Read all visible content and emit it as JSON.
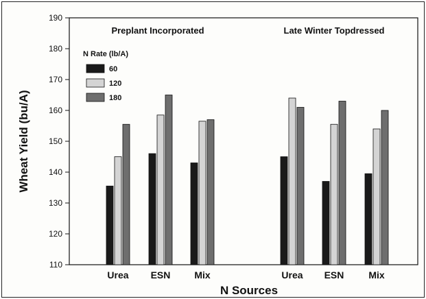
{
  "chart_data": {
    "type": "bar",
    "title": "",
    "xlabel": "N Sources",
    "ylabel": "Wheat Yield (bu/A)",
    "ylim": [
      110,
      190
    ],
    "yticks": [
      110,
      120,
      130,
      140,
      150,
      160,
      170,
      180,
      190
    ],
    "grid": false,
    "legend": {
      "title": "N Rate (lb/A)",
      "placement": "top-left",
      "entries": [
        "60",
        "120",
        "180"
      ]
    },
    "groups": [
      {
        "title": "Preplant Incorporated",
        "categories": [
          "Urea",
          "ESN",
          "Mix"
        ],
        "series": [
          {
            "name": "60",
            "values": [
              135.5,
              146,
              143
            ],
            "color": "#1a1a1a"
          },
          {
            "name": "120",
            "values": [
              145,
              158.5,
              156.5
            ],
            "color": "#d4d4d4"
          },
          {
            "name": "180",
            "values": [
              155.5,
              165,
              157
            ],
            "color": "#6e6e6e"
          }
        ]
      },
      {
        "title": "Late Winter Topdressed",
        "categories": [
          "Urea",
          "ESN",
          "Mix"
        ],
        "series": [
          {
            "name": "60",
            "values": [
              145,
              137,
              139.5
            ],
            "color": "#1a1a1a"
          },
          {
            "name": "120",
            "values": [
              164,
              155.5,
              154
            ],
            "color": "#d4d4d4"
          },
          {
            "name": "180",
            "values": [
              161,
              163,
              160
            ],
            "color": "#6e6e6e"
          }
        ]
      }
    ]
  }
}
